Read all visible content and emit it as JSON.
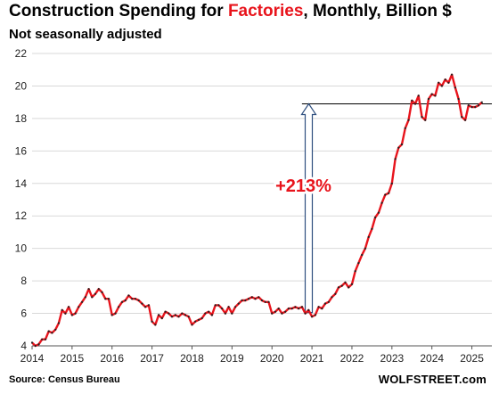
{
  "title": {
    "prefix": "Construction Spending for ",
    "highlight": "Factories",
    "suffix": ", Monthly, Billion $"
  },
  "subtitle": "Not seasonally adjusted",
  "source": "Source: Census Bureau",
  "brand": "WOLFSTREET.com",
  "colors": {
    "line": "#e8141c",
    "markers": "#222222",
    "annotation": "#e8141c",
    "arrow": "#2f4f7f",
    "grid": "#d9d9d9",
    "reference_line": "#000000"
  },
  "chart_data": {
    "type": "line",
    "title": "Construction Spending for Factories, Monthly, Billion $",
    "subtitle": "Not seasonally adjusted",
    "xlabel": "",
    "ylabel": "",
    "xlim": [
      2014,
      2025.5
    ],
    "ylim": [
      4,
      22
    ],
    "x_ticks": [
      "2014",
      "2015",
      "2016",
      "2017",
      "2018",
      "2019",
      "2020",
      "2021",
      "2022",
      "2023",
      "2024",
      "2025"
    ],
    "y_ticks": [
      "4",
      "6",
      "8",
      "10",
      "12",
      "14",
      "16",
      "18",
      "20",
      "22"
    ],
    "grid": "horizontal",
    "start": "2014-01",
    "frequency": "monthly",
    "values": [
      4.2,
      4.0,
      4.1,
      4.4,
      4.4,
      4.9,
      4.8,
      5.0,
      5.4,
      6.2,
      6.0,
      6.4,
      5.9,
      6.0,
      6.4,
      6.7,
      7.0,
      7.5,
      7.0,
      7.2,
      7.5,
      7.3,
      6.9,
      6.9,
      5.9,
      6.0,
      6.4,
      6.7,
      6.8,
      7.1,
      6.9,
      6.9,
      6.8,
      6.6,
      6.4,
      6.5,
      5.5,
      5.3,
      5.9,
      5.7,
      6.1,
      6.0,
      5.8,
      5.9,
      5.8,
      6.0,
      5.9,
      5.8,
      5.3,
      5.5,
      5.6,
      5.7,
      6.0,
      6.1,
      5.9,
      6.5,
      6.5,
      6.3,
      6.0,
      6.4,
      6.0,
      6.4,
      6.6,
      6.8,
      6.8,
      6.9,
      7.0,
      6.9,
      7.0,
      6.8,
      6.7,
      6.7,
      6.0,
      6.1,
      6.3,
      6.0,
      6.1,
      6.3,
      6.3,
      6.4,
      6.3,
      6.4,
      6.0,
      6.2,
      5.8,
      5.9,
      6.4,
      6.3,
      6.6,
      6.7,
      7.0,
      7.2,
      7.6,
      7.7,
      7.9,
      7.6,
      7.8,
      8.6,
      9.1,
      9.6,
      10.0,
      10.7,
      11.2,
      11.9,
      12.2,
      12.8,
      13.3,
      13.4,
      14.0,
      15.5,
      16.2,
      16.4,
      17.4,
      17.9,
      19.1,
      18.9,
      19.4,
      18.1,
      17.9,
      19.2,
      19.5,
      19.4,
      20.2,
      20.0,
      20.4,
      20.2,
      20.7,
      19.9,
      19.2,
      18.1,
      17.9,
      18.8,
      18.7,
      18.7,
      18.8,
      19.0
    ],
    "reference_level": 18.9,
    "annotation": {
      "text": "+213%",
      "from": 6.05,
      "to": 18.9,
      "x": 2020.92
    }
  }
}
